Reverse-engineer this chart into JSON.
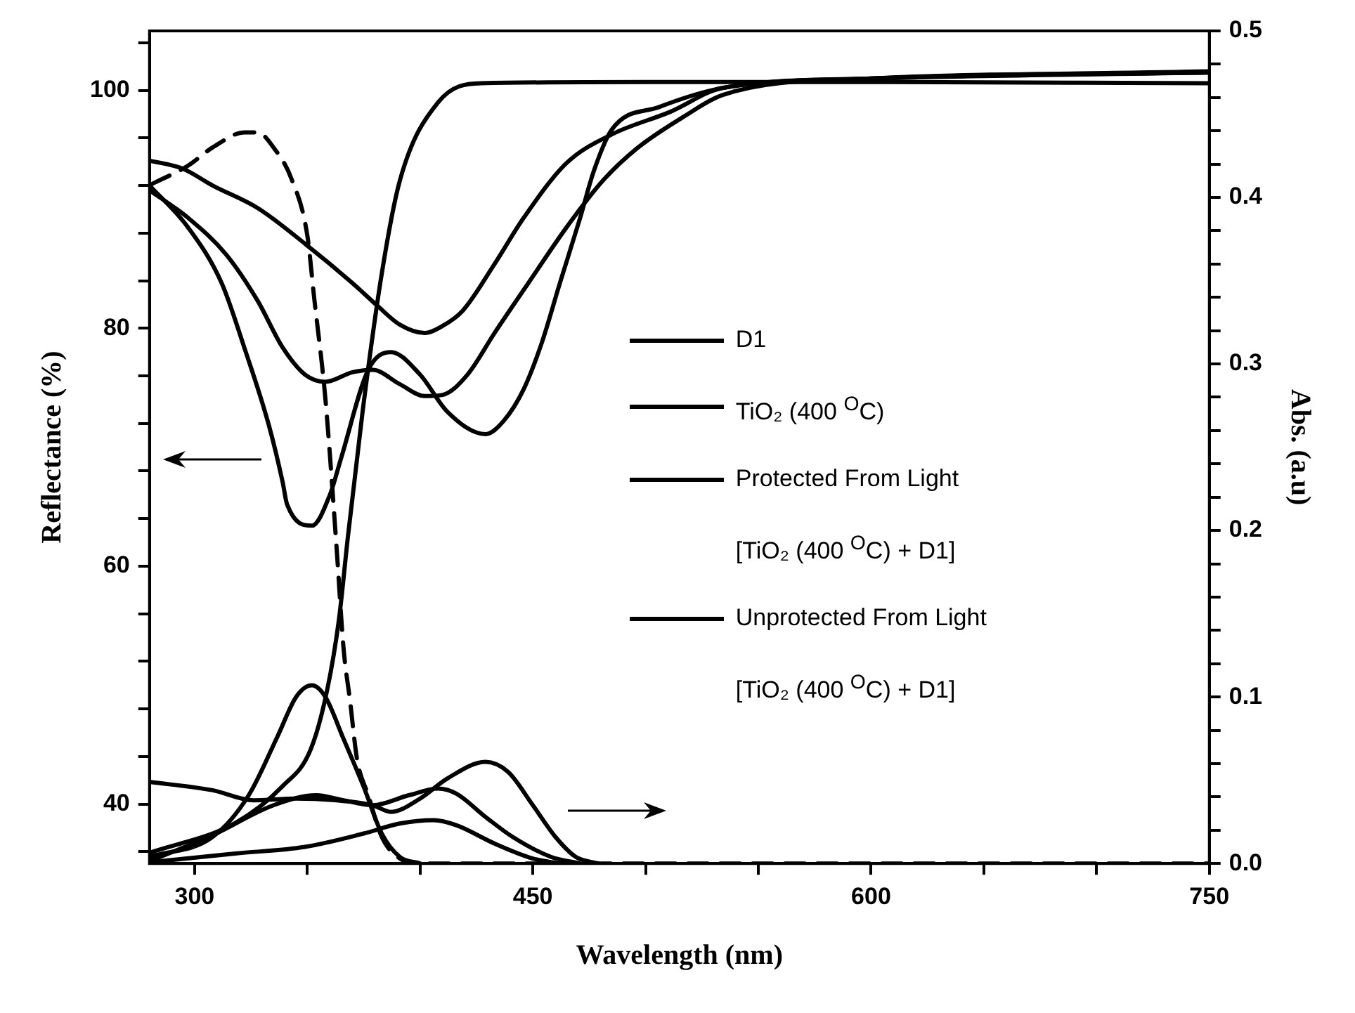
{
  "chart_data": {
    "type": "line",
    "xlabel": "Wavelength (nm)",
    "ylabel": "Reflectance (%)",
    "y2label": "Abs. (a.u)",
    "legend": "right",
    "xlim": [
      280,
      750
    ],
    "ylim": [
      35,
      105
    ],
    "y2lim": [
      0,
      0.5
    ],
    "xticks": [
      300,
      {
        "value": 350,
        "label": null
      },
      {
        "value": 400,
        "label": null
      },
      450,
      {
        "value": 500,
        "label": null
      },
      {
        "value": 550,
        "label": null
      },
      600,
      {
        "value": 650,
        "label": null
      },
      {
        "value": 700,
        "label": null
      },
      750
    ],
    "yticks": [
      {
        "value": 36,
        "label": null
      },
      40,
      {
        "value": 44,
        "label": null
      },
      {
        "value": 48,
        "label": null
      },
      {
        "value": 52,
        "label": null
      },
      {
        "value": 56,
        "label": null
      },
      60,
      {
        "value": 64,
        "label": null
      },
      {
        "value": 68,
        "label": null
      },
      {
        "value": 72,
        "label": null
      },
      {
        "value": 76,
        "label": null
      },
      80,
      {
        "value": 84,
        "label": null
      },
      {
        "value": 88,
        "label": null
      },
      {
        "value": 92,
        "label": null
      },
      {
        "value": 96,
        "label": null
      },
      100,
      {
        "value": 104,
        "label": null
      }
    ],
    "y2ticks": [
      {
        "value": 0,
        "label": "0.0"
      },
      {
        "value": 0.02,
        "label": null
      },
      {
        "value": 0.04,
        "label": null
      },
      {
        "value": 0.06,
        "label": null
      },
      {
        "value": 0.08,
        "label": null
      },
      0.1,
      {
        "value": 0.12,
        "label": null
      },
      {
        "value": 0.14,
        "label": null
      },
      {
        "value": 0.16,
        "label": null
      },
      {
        "value": 0.18,
        "label": null
      },
      0.2,
      {
        "value": 0.22,
        "label": null
      },
      {
        "value": 0.24,
        "label": null
      },
      {
        "value": 0.26,
        "label": null
      },
      {
        "value": 0.28,
        "label": null
      },
      0.3,
      {
        "value": 0.32,
        "label": null
      },
      {
        "value": 0.34,
        "label": null
      },
      {
        "value": 0.36,
        "label": null
      },
      {
        "value": 0.38,
        "label": null
      },
      0.4,
      {
        "value": 0.42,
        "label": null
      },
      {
        "value": 0.44,
        "label": null
      },
      {
        "value": 0.46,
        "label": null
      },
      {
        "value": 0.48,
        "label": null
      },
      0.5
    ],
    "series": [
      {
        "name": "D1",
        "color": "#000000",
        "x": [
          280,
          297,
          312,
          322,
          333,
          339,
          341,
          352,
          360,
          365,
          377,
          387,
          400,
          412,
          429,
          437,
          446,
          454,
          462,
          471,
          477,
          485,
          506,
          534,
          600,
          750
        ],
        "values": [
          92.0,
          88.5,
          83.8,
          78.4,
          71.8,
          67.1,
          65.2,
          63.4,
          66.0,
          69.1,
          76.5,
          78.0,
          76.1,
          73.0,
          71.1,
          72.2,
          74.9,
          78.8,
          83.8,
          89.3,
          93.2,
          96.7,
          98.6,
          100.2,
          101.0,
          101.6
        ]
      },
      {
        "name": "TiO₂ (400 $^{O}$C)",
        "color": "#000000",
        "x": [
          280,
          318,
          339,
          351.5,
          358.8,
          364,
          368,
          374.5,
          383,
          391,
          408,
          427,
          500,
          600,
          750
        ],
        "values": [
          35.9,
          38.4,
          41.5,
          44.6,
          49.6,
          55.5,
          62.5,
          73,
          84.6,
          92.4,
          99,
          100.6,
          100.7,
          100.7,
          100.6
        ]
      },
      {
        "name": "Protected From Light [TiO₂ (400 $^{O}$C) + D1]",
        "color": "#000000",
        "x": [
          280,
          297,
          314,
          328,
          339,
          349,
          358,
          370,
          379,
          391,
          402,
          410,
          421,
          433,
          448,
          465,
          481,
          496,
          517,
          534,
          600,
          750
        ],
        "values": [
          91.6,
          89.3,
          86.2,
          82.3,
          78.4,
          76.1,
          75.5,
          76.3,
          76.5,
          75.3,
          74.3,
          74.4,
          76.1,
          79.6,
          83.8,
          88.5,
          92.4,
          95.1,
          97.8,
          99.6,
          101.0,
          101.5
        ]
      },
      {
        "name": "Unprotected From Light [TiO₂ (400 $^{O}$C) + D1]",
        "color": "#000000",
        "x": [
          280,
          295,
          308,
          328,
          349,
          370,
          381,
          391,
          402,
          410,
          419,
          433,
          446,
          465,
          485,
          511,
          534,
          600,
          750
        ],
        "values": [
          94.1,
          93.4,
          92.0,
          90.1,
          87.1,
          83.8,
          81.9,
          80.3,
          79.6,
          80.2,
          81.5,
          85.4,
          89.3,
          93.9,
          96.3,
          98.2,
          100.2,
          101.0,
          101.5
        ]
      },
      {
        "color": "#000000",
        "axis": "y2",
        "line_style": "dashed",
        "x": [
          281,
          297,
          308,
          322,
          328,
          335,
          343,
          350,
          353,
          358,
          363,
          366,
          369,
          372,
          377,
          383,
          391,
          400,
          750
        ],
        "values": [
          0.408,
          0.419,
          0.43,
          0.439,
          0.439,
          0.43,
          0.411,
          0.377,
          0.34,
          0.279,
          0.189,
          0.13,
          0.097,
          0.063,
          0.041,
          0.016,
          0.003,
          0,
          0
        ]
      },
      {
        "color": "#000000",
        "axis": "y2",
        "x": [
          280,
          308,
          324,
          337,
          345,
          352,
          358,
          366,
          375,
          383,
          391,
          400
        ],
        "values": [
          0.004,
          0.016,
          0.041,
          0.077,
          0.1,
          0.107,
          0.1,
          0.075,
          0.046,
          0.018,
          0.004,
          0
        ]
      },
      {
        "color": "#000000",
        "axis": "y2",
        "x": [
          281,
          308,
          335,
          354,
          366,
          379,
          395,
          408,
          416,
          429,
          441,
          458,
          471
        ],
        "values": [
          0.002,
          0.017,
          0.035,
          0.041,
          0.038,
          0.035,
          0.041,
          0.045,
          0.042,
          0.028,
          0.016,
          0.004,
          0
        ]
      },
      {
        "color": "#000000",
        "axis": "y2",
        "x": [
          280,
          308,
          326,
          345,
          362,
          379,
          387,
          400,
          412,
          429,
          439,
          450,
          460,
          469,
          479
        ],
        "values": [
          0.049,
          0.044,
          0.038,
          0.039,
          0.038,
          0.035,
          0.031,
          0.039,
          0.051,
          0.061,
          0.055,
          0.035,
          0.016,
          0.004,
          0
        ]
      },
      {
        "color": "#000000",
        "axis": "y2",
        "x": [
          282,
          318,
          349,
          375,
          391,
          406,
          416,
          433,
          450,
          462
        ],
        "values": [
          0.001,
          0.006,
          0.01,
          0.018,
          0.024,
          0.026,
          0.023,
          0.012,
          0.003,
          0
        ]
      }
    ]
  }
}
